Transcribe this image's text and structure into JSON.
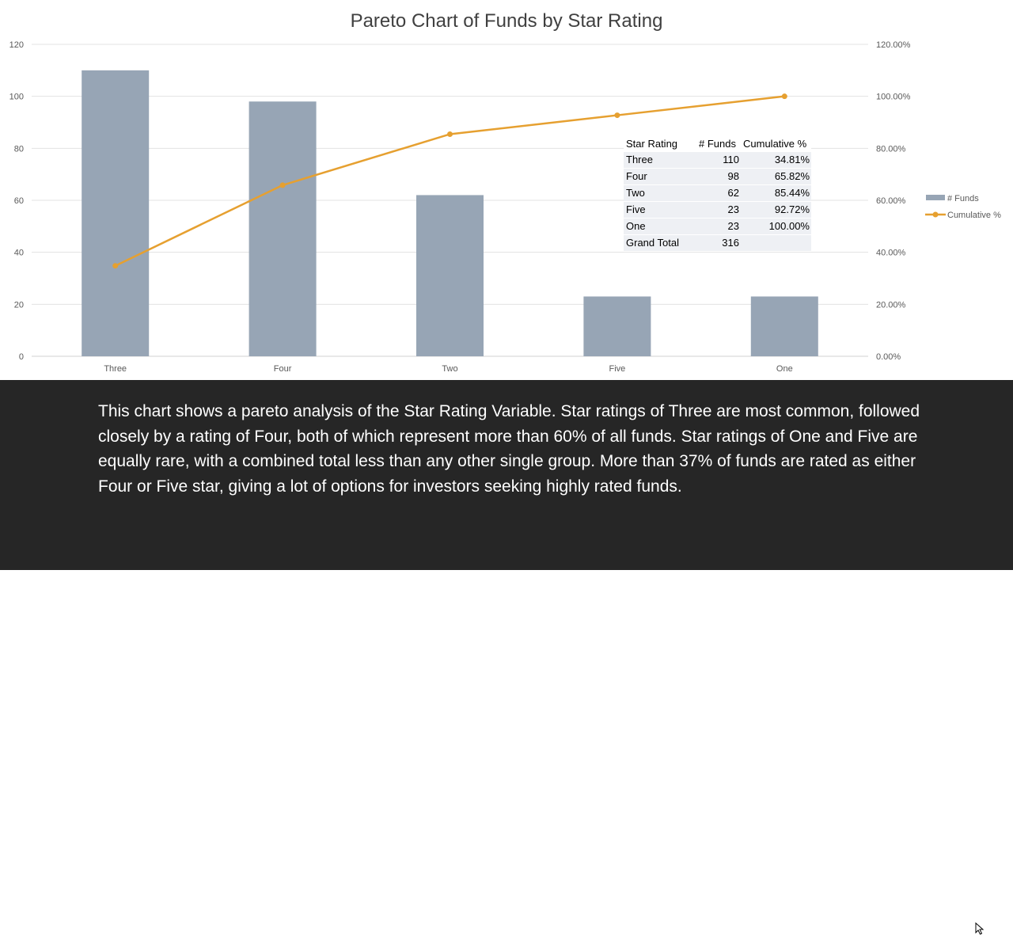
{
  "colors": {
    "bar": "#97a5b5",
    "line": "#e6a030",
    "grid": "#e3e3e3",
    "caption_bg": "#262626"
  },
  "chart_data": {
    "type": "bar",
    "title": "Pareto Chart of Funds by Star Rating",
    "categories": [
      "Three",
      "Four",
      "Two",
      "Five",
      "One"
    ],
    "series": [
      {
        "name": "# Funds",
        "type": "bar",
        "axis": "left",
        "values": [
          110,
          98,
          62,
          23,
          23
        ]
      },
      {
        "name": "Cumulative %",
        "type": "line",
        "axis": "right",
        "values": [
          34.81,
          65.82,
          85.44,
          92.72,
          100.0
        ]
      }
    ],
    "y_left": {
      "min": 0,
      "max": 120,
      "step": 20,
      "tick_labels": [
        "0",
        "20",
        "40",
        "60",
        "80",
        "100",
        "120"
      ]
    },
    "y_right": {
      "min": 0,
      "max": 120,
      "step": 20,
      "tick_labels": [
        "0.00%",
        "20.00%",
        "40.00%",
        "60.00%",
        "80.00%",
        "100.00%",
        "120.00%"
      ]
    },
    "grid": true,
    "legend": {
      "position": "right",
      "entries": [
        "# Funds",
        "Cumulative %"
      ]
    }
  },
  "table": {
    "headers": [
      "Star Rating",
      "# Funds",
      "Cumulative %"
    ],
    "rows": [
      [
        "Three",
        "110",
        "34.81%"
      ],
      [
        "Four",
        "98",
        "65.82%"
      ],
      [
        "Two",
        "62",
        "85.44%"
      ],
      [
        "Five",
        "23",
        "92.72%"
      ],
      [
        "One",
        "23",
        "100.00%"
      ]
    ],
    "total": [
      "Grand Total",
      "316",
      ""
    ]
  },
  "caption": "This chart shows a pareto analysis of the Star Rating Variable. Star ratings of Three are most common, followed closely by a rating of Four, both of which represent more than 60% of all funds. Star ratings of One and Five are equally rare, with a combined total less than any other single group. More than 37% of funds are rated as either Four or Five star, giving a lot of options for investors seeking highly rated funds."
}
